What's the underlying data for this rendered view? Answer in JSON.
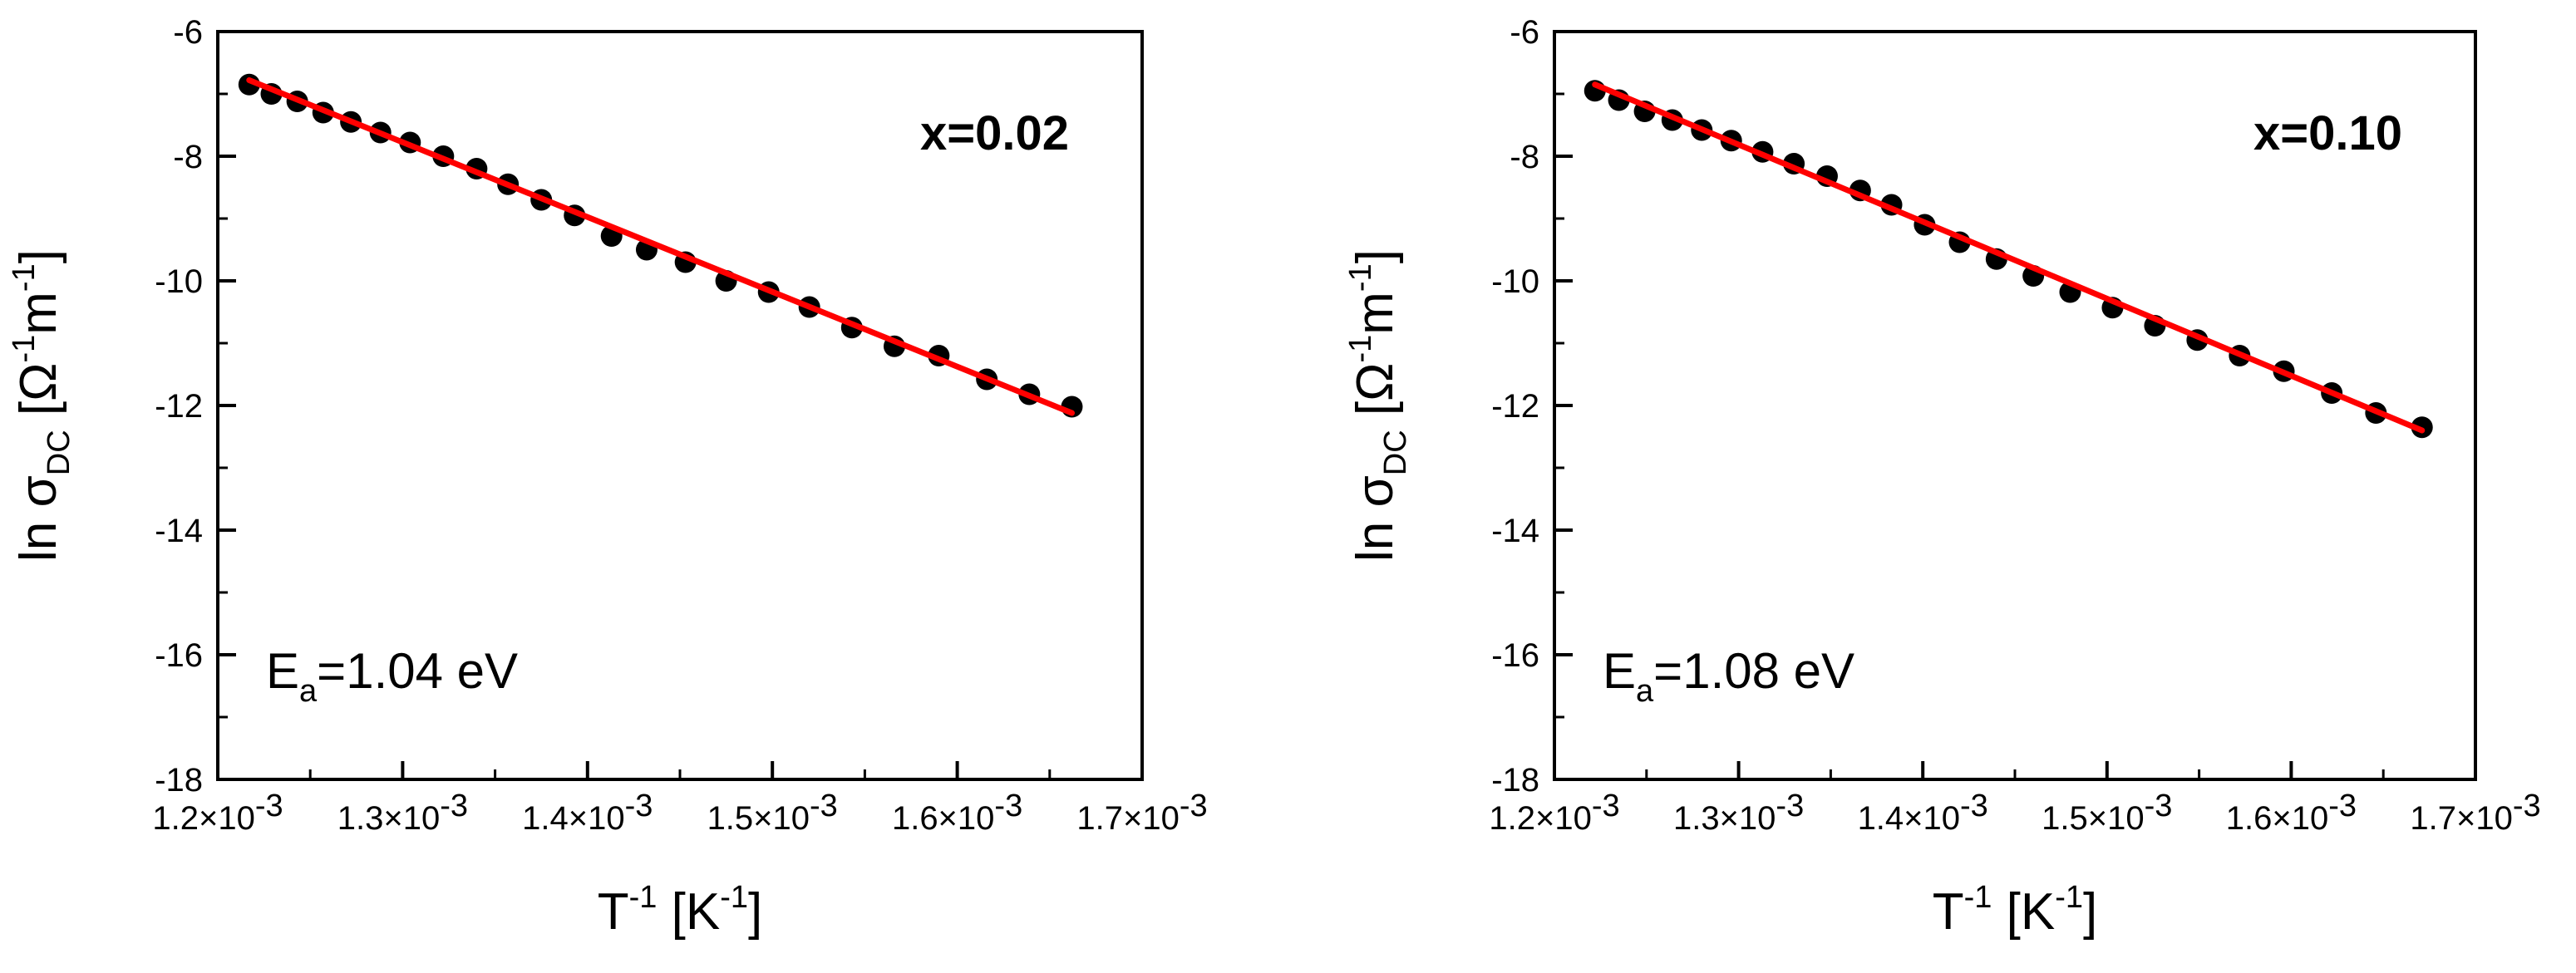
{
  "chart_data": [
    {
      "type": "scatter",
      "xlim": [
        0.0012,
        0.0017
      ],
      "ylim": [
        -18,
        -6
      ],
      "x_ticks": [
        0.0012,
        0.0013,
        0.0014,
        0.0015,
        0.0016,
        0.0017
      ],
      "x_tick_labels": [
        {
          "mant": "1.2×10",
          "exp": "-3"
        },
        {
          "mant": "1.3×10",
          "exp": "-3"
        },
        {
          "mant": "1.4×10",
          "exp": "-3"
        },
        {
          "mant": "1.5×10",
          "exp": "-3"
        },
        {
          "mant": "1.6×10",
          "exp": "-3"
        },
        {
          "mant": "1.7×10",
          "exp": "-3"
        }
      ],
      "y_ticks": [
        -6,
        -8,
        -10,
        -12,
        -14,
        -16,
        -18
      ],
      "y_tick_labels": [
        "-6",
        "-8",
        "-10",
        "-12",
        "-14",
        "-16",
        "-18"
      ],
      "xlabel": {
        "base": "T",
        "sup1": "-1",
        "mid": " [K",
        "sup2": "-1",
        "end": "]"
      },
      "ylabel": {
        "pre": "ln σ",
        "sub": "DC",
        "mid1": " [Ω",
        "sup1": "-1",
        "mid2": "m",
        "sup2": "-1",
        "end": "]"
      },
      "panel_label": "x=0.02",
      "annotation": {
        "pre": "E",
        "sub": "a",
        "post": "=1.04 eV"
      },
      "x": [
        0.001217,
        0.001229,
        0.001243,
        0.001257,
        0.001272,
        0.001288,
        0.001304,
        0.001322,
        0.00134,
        0.001357,
        0.001375,
        0.001393,
        0.001413,
        0.001432,
        0.001453,
        0.001475,
        0.001498,
        0.00152,
        0.001543,
        0.001566,
        0.00159,
        0.001616,
        0.001639,
        0.001662
      ],
      "y": [
        -6.85,
        -7.0,
        -7.12,
        -7.3,
        -7.45,
        -7.62,
        -7.78,
        -8.0,
        -8.2,
        -8.45,
        -8.7,
        -8.95,
        -9.28,
        -9.5,
        -9.7,
        -10.0,
        -10.18,
        -10.42,
        -10.75,
        -11.05,
        -11.2,
        -11.58,
        -11.82,
        -12.02
      ],
      "fit_line": {
        "x": [
          0.001217,
          0.001662
        ],
        "y": [
          -6.78,
          -12.12
        ],
        "color": "#ff0000"
      },
      "marker_color": "#000000"
    },
    {
      "type": "scatter",
      "xlim": [
        0.0012,
        0.0017
      ],
      "ylim": [
        -18,
        -6
      ],
      "x_ticks": [
        0.0012,
        0.0013,
        0.0014,
        0.0015,
        0.0016,
        0.0017
      ],
      "x_tick_labels": [
        {
          "mant": "1.2×10",
          "exp": "-3"
        },
        {
          "mant": "1.3×10",
          "exp": "-3"
        },
        {
          "mant": "1.4×10",
          "exp": "-3"
        },
        {
          "mant": "1.5×10",
          "exp": "-3"
        },
        {
          "mant": "1.6×10",
          "exp": "-3"
        },
        {
          "mant": "1.7×10",
          "exp": "-3"
        }
      ],
      "y_ticks": [
        -6,
        -8,
        -10,
        -12,
        -14,
        -16,
        -18
      ],
      "y_tick_labels": [
        "-6",
        "-8",
        "-10",
        "-12",
        "-14",
        "-16",
        "-18"
      ],
      "xlabel": {
        "base": "T",
        "sup1": "-1",
        "mid": " [K",
        "sup2": "-1",
        "end": "]"
      },
      "ylabel": {
        "pre": "ln σ",
        "sub": "DC",
        "mid1": " [Ω",
        "sup1": "-1",
        "mid2": "m",
        "sup2": "-1",
        "end": "]"
      },
      "panel_label": "x=0.10",
      "annotation": {
        "pre": "E",
        "sub": "a",
        "post": "=1.08 eV"
      },
      "x": [
        0.001222,
        0.001235,
        0.001249,
        0.001264,
        0.00128,
        0.001296,
        0.001313,
        0.00133,
        0.001348,
        0.001366,
        0.001383,
        0.001401,
        0.00142,
        0.00144,
        0.00146,
        0.00148,
        0.001503,
        0.001526,
        0.001549,
        0.001572,
        0.001596,
        0.001622,
        0.001646,
        0.001671
      ],
      "y": [
        -6.95,
        -7.1,
        -7.28,
        -7.42,
        -7.58,
        -7.75,
        -7.93,
        -8.12,
        -8.32,
        -8.55,
        -8.78,
        -9.1,
        -9.38,
        -9.65,
        -9.92,
        -10.18,
        -10.43,
        -10.72,
        -10.95,
        -11.2,
        -11.45,
        -11.8,
        -12.12,
        -12.35
      ],
      "fit_line": {
        "x": [
          0.001222,
          0.001671
        ],
        "y": [
          -6.85,
          -12.4
        ],
        "color": "#ff0000"
      },
      "marker_color": "#000000"
    }
  ]
}
